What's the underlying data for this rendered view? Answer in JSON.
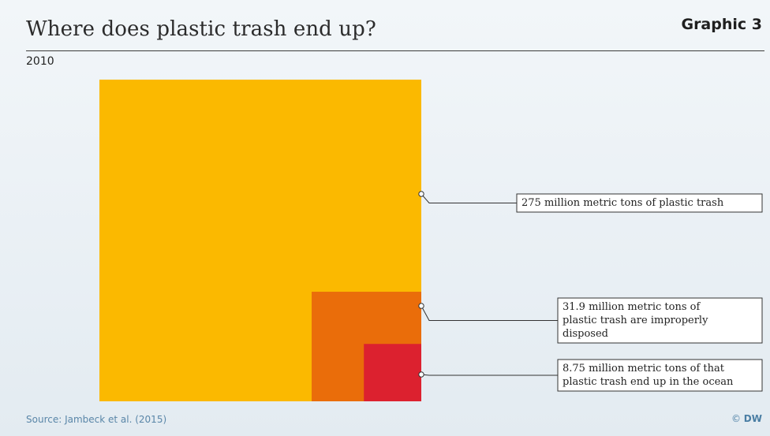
{
  "header": {
    "title": "Where does plastic trash end up?",
    "graphic_label": "Graphic 3",
    "subtitle": "2010"
  },
  "footer": {
    "source": "Source: Jambeck et al. (2015)",
    "credit_symbol": "©",
    "credit_brand": "DW"
  },
  "colors": {
    "total": "#fbb900",
    "improper": "#ea6d0a",
    "ocean": "#dc212f",
    "label_border": "#333333",
    "label_bg": "#ffffff"
  },
  "chart_data": {
    "type": "nested-square area",
    "unit": "million metric tons",
    "series": [
      {
        "value": 275,
        "label": "275 million metric tons of plastic trash"
      },
      {
        "value": 31.9,
        "label": "31.9 million metric tons of plastic trash are improperly disposed"
      },
      {
        "value": 8.75,
        "label": "8.75 million metric tons of that plastic trash end up in the ocean"
      }
    ]
  }
}
